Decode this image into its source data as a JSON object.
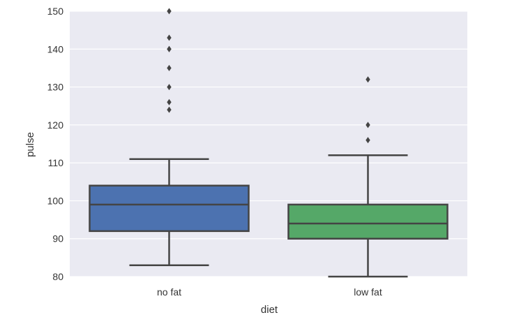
{
  "chart_data": {
    "type": "box",
    "title": "",
    "xlabel": "diet",
    "ylabel": "pulse",
    "ylim": [
      80,
      150
    ],
    "yticks": [
      80,
      90,
      100,
      110,
      120,
      130,
      140,
      150
    ],
    "ytick_labels": [
      "80",
      "90",
      "100",
      "110",
      "120",
      "130",
      "140",
      "150"
    ],
    "grid": true,
    "categories": [
      "no fat",
      "low fat"
    ],
    "boxes": [
      {
        "category": "no fat",
        "whisker_low": 83,
        "q1": 92,
        "median": 99,
        "q3": 104,
        "whisker_high": 111,
        "outliers": [
          124,
          126,
          130,
          135,
          140,
          140,
          143,
          150
        ],
        "color": "#4c72b0"
      },
      {
        "category": "low fat",
        "whisker_low": 80,
        "q1": 90,
        "median": 94,
        "q3": 99,
        "whisker_high": 112,
        "outliers": [
          116,
          120,
          132
        ],
        "color": "#55a868"
      }
    ],
    "colors": {
      "background": "#eaeaf2",
      "grid": "#ffffff",
      "line": "#444444"
    }
  }
}
